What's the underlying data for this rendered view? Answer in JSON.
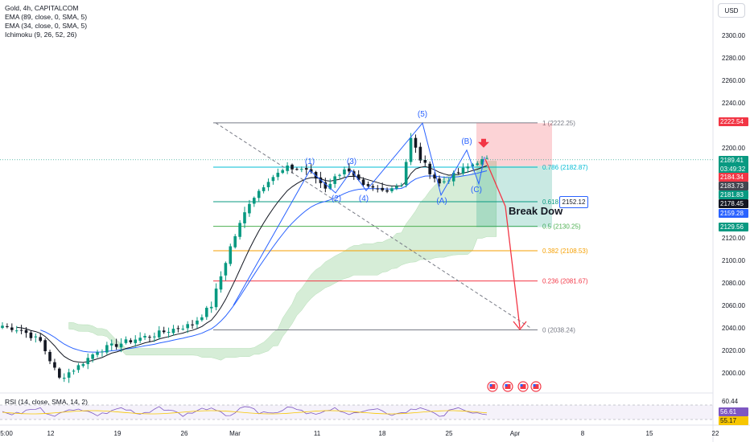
{
  "header": {
    "symbol": "Gold, 4h, CAPITALCOM",
    "indicators": [
      "EMA (89, close, 0, SMA, 5)",
      "EMA (34, close, 0, SMA, 5)",
      "Ichimoku (9, 26, 52, 26)"
    ],
    "currency_button": "USD"
  },
  "rsi": {
    "label": "RSI (14, close, SMA, 14, 2)",
    "scale_top": "60.44",
    "value1": "56.61",
    "value2": "55.17"
  },
  "price_axis_labels": [
    "2300.00",
    "2280.00",
    "2260.00",
    "2240.00",
    "2200.00",
    "2120.00",
    "2100.00",
    "2080.00",
    "2060.00",
    "2040.00",
    "2020.00",
    "2000.00"
  ],
  "time_axis_labels": [
    "5:00",
    "12",
    "19",
    "26",
    "Mar",
    "11",
    "18",
    "25",
    "Apr",
    "8",
    "15",
    "22"
  ],
  "price_tags": [
    {
      "text": "2222.54",
      "color": "#f23645"
    },
    {
      "text": "2189.41",
      "sub": "03:49:32",
      "color": "#089981"
    },
    {
      "text": "2184.34",
      "color": "#f23645"
    },
    {
      "text": "2183.73",
      "color": "#434651"
    },
    {
      "text": "2181.83",
      "color": "#089981"
    },
    {
      "text": "2178.45",
      "color": "#131722"
    },
    {
      "text": "2159.28",
      "color": "#2962ff"
    },
    {
      "text": "2129.56",
      "color": "#089981"
    }
  ],
  "fib_labels": [
    {
      "text": "1 (2222.25)",
      "color": "#787b86"
    },
    {
      "text": "0.786 (2182.87)",
      "color": "#00bcd4"
    },
    {
      "text": "0.618",
      "color": "#089981"
    },
    {
      "text": "0.5 (2130.25)",
      "color": "#4caf50"
    },
    {
      "text": "0.382 (2108.53)",
      "color": "#f59f00"
    },
    {
      "text": "0.236 (2081.67)",
      "color": "#f23645"
    },
    {
      "text": "0 (2038.24)",
      "color": "#787b86"
    }
  ],
  "fib_price_box": "2152.12",
  "wave_labels": [
    "(1)",
    "(2)",
    "(3)",
    "(4)",
    "(5)",
    "(A)",
    "(B)",
    "(C)"
  ],
  "annotation": "Break Dow",
  "colors": {
    "bull": "#089981",
    "bear": "#131722",
    "ema34": "#131722",
    "ema89": "#2962ff",
    "cloud": "#a5d6a7",
    "wave": "#2962ff",
    "projection": "#f23645"
  },
  "chart_data": {
    "type": "candlestick",
    "title": "Gold, 4h, CAPITALCOM",
    "yrange": [
      1975,
      2320
    ],
    "key_levels": {
      "wave_5_high": 2222.25,
      "fib_0786": 2182.87,
      "fib_0618": 2152.12,
      "fib_05": 2130.25,
      "fib_0382": 2108.53,
      "fib_0236": 2081.67,
      "fib_0": 2038.24
    },
    "current_price": 2189.41,
    "close_path": [
      {
        "t": 0,
        "p": 2042
      },
      {
        "t": 4,
        "p": 2038
      },
      {
        "t": 8,
        "p": 2028
      },
      {
        "t": 12,
        "p": 1995
      },
      {
        "t": 16,
        "p": 2006
      },
      {
        "t": 20,
        "p": 2020
      },
      {
        "t": 24,
        "p": 2025
      },
      {
        "t": 28,
        "p": 2030
      },
      {
        "t": 32,
        "p": 2034
      },
      {
        "t": 36,
        "p": 2039
      },
      {
        "t": 40,
        "p": 2043
      },
      {
        "t": 44,
        "p": 2060
      },
      {
        "t": 48,
        "p": 2112
      },
      {
        "t": 52,
        "p": 2152
      },
      {
        "t": 56,
        "p": 2172
      },
      {
        "t": 60,
        "p": 2182
      },
      {
        "t": 64,
        "p": 2181
      },
      {
        "t": 68,
        "p": 2165
      },
      {
        "t": 72,
        "p": 2182
      },
      {
        "t": 76,
        "p": 2165
      },
      {
        "t": 80,
        "p": 2162
      },
      {
        "t": 84,
        "p": 2168
      },
      {
        "t": 86,
        "p": 2208
      },
      {
        "t": 88,
        "p": 2190
      },
      {
        "t": 92,
        "p": 2168
      },
      {
        "t": 96,
        "p": 2178
      },
      {
        "t": 100,
        "p": 2188
      },
      {
        "t": 102,
        "p": 2189
      }
    ]
  }
}
